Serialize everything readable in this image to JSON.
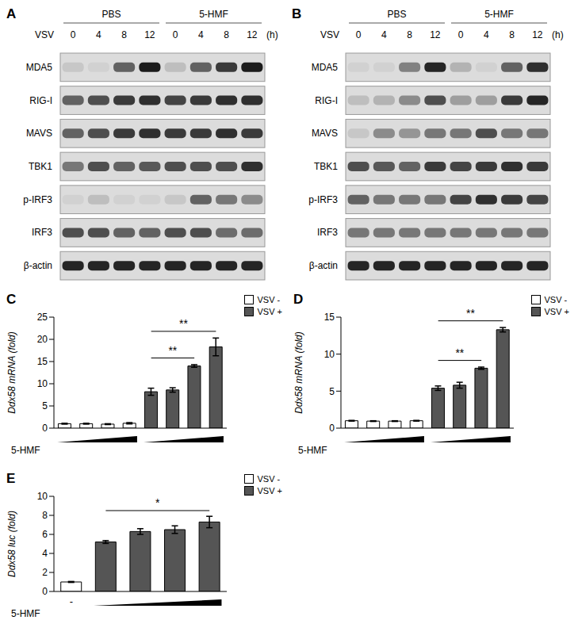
{
  "blots": [
    {
      "panel": "A",
      "groups": [
        "PBS",
        "5-HMF"
      ],
      "treatment": "VSV",
      "times": [
        0,
        4,
        8,
        12
      ],
      "time_unit": "(h)",
      "rows": [
        {
          "label": "MDA5",
          "intensity": [
            0.1,
            0.05,
            0.6,
            0.95,
            0.15,
            0.6,
            0.8,
            0.95
          ]
        },
        {
          "label": "RIG-I",
          "intensity": [
            0.6,
            0.7,
            0.8,
            0.85,
            0.75,
            0.8,
            0.85,
            0.85
          ]
        },
        {
          "label": "MAVS",
          "intensity": [
            0.6,
            0.7,
            0.8,
            0.85,
            0.8,
            0.8,
            0.85,
            0.8
          ]
        },
        {
          "label": "TBK1",
          "intensity": [
            0.5,
            0.7,
            0.6,
            0.65,
            0.7,
            0.7,
            0.7,
            0.85
          ]
        },
        {
          "label": "p-IRF3",
          "intensity": [
            0.05,
            0.15,
            0.05,
            0.05,
            0.1,
            0.6,
            0.5,
            0.4
          ]
        },
        {
          "label": "IRF3",
          "intensity": [
            0.7,
            0.7,
            0.6,
            0.6,
            0.7,
            0.7,
            0.55,
            0.55
          ]
        },
        {
          "label": "β-actin",
          "intensity": [
            0.9,
            0.9,
            0.9,
            0.9,
            0.9,
            0.9,
            0.9,
            0.9
          ]
        }
      ]
    },
    {
      "panel": "B",
      "groups": [
        "PBS",
        "5-HMF"
      ],
      "treatment": "VSV",
      "times": [
        0,
        4,
        8,
        12
      ],
      "time_unit": "(h)",
      "rows": [
        {
          "label": "MDA5",
          "intensity": [
            0.05,
            0.05,
            0.45,
            0.9,
            0.2,
            0.05,
            0.6,
            0.85
          ]
        },
        {
          "label": "RIG-I",
          "intensity": [
            0.15,
            0.2,
            0.4,
            0.7,
            0.3,
            0.3,
            0.8,
            0.9
          ]
        },
        {
          "label": "MAVS",
          "intensity": [
            0.1,
            0.4,
            0.35,
            0.5,
            0.5,
            0.7,
            0.5,
            0.5
          ]
        },
        {
          "label": "TBK1",
          "intensity": [
            0.7,
            0.65,
            0.6,
            0.8,
            0.75,
            0.8,
            0.85,
            0.8
          ]
        },
        {
          "label": "p-IRF3",
          "intensity": [
            0.6,
            0.5,
            0.5,
            0.5,
            0.75,
            0.85,
            0.8,
            0.75
          ]
        },
        {
          "label": "IRF3",
          "intensity": [
            0.5,
            0.5,
            0.5,
            0.5,
            0.5,
            0.5,
            0.5,
            0.5
          ]
        },
        {
          "label": "β-actin",
          "intensity": [
            0.9,
            0.9,
            0.9,
            0.9,
            0.9,
            0.9,
            0.9,
            0.9
          ]
        }
      ]
    }
  ],
  "chart_data": [
    {
      "panel": "C",
      "type": "bar",
      "y_label": "Ddx58 mRNA (fold)",
      "x_label": "5-HMF",
      "categories": [
        null,
        null,
        null,
        null,
        null,
        null,
        null,
        null
      ],
      "series": [
        {
          "name": "VSV -",
          "color": "#ffffff",
          "values": [
            1.0,
            1.0,
            0.9,
            1.1,
            null,
            null,
            null,
            null
          ],
          "errors": [
            0.1,
            0.1,
            0.1,
            0.15,
            null,
            null,
            null,
            null
          ]
        },
        {
          "name": "VSV +",
          "color": "#555555",
          "values": [
            null,
            null,
            null,
            null,
            8.2,
            8.6,
            14.0,
            18.3
          ],
          "errors": [
            null,
            null,
            null,
            null,
            0.8,
            0.5,
            0.3,
            2.0
          ]
        }
      ],
      "ylim": [
        0,
        25
      ],
      "yticks": [
        0,
        5,
        10,
        15,
        20,
        25
      ],
      "annotations": [
        {
          "text": "**",
          "from": 4,
          "to": 6
        },
        {
          "text": "**",
          "from": 4,
          "to": 7
        }
      ]
    },
    {
      "panel": "D",
      "type": "bar",
      "y_label": "Ddx58 mRNA (fold)",
      "x_label": "5-HMF",
      "categories": [
        null,
        null,
        null,
        null,
        null,
        null,
        null,
        null
      ],
      "series": [
        {
          "name": "VSV -",
          "color": "#ffffff",
          "values": [
            1.0,
            0.95,
            0.95,
            1.0,
            null,
            null,
            null,
            null
          ],
          "errors": [
            0.05,
            0.05,
            0.05,
            0.05,
            null,
            null,
            null,
            null
          ]
        },
        {
          "name": "VSV +",
          "color": "#555555",
          "values": [
            null,
            null,
            null,
            null,
            5.4,
            5.8,
            8.1,
            13.3
          ],
          "errors": [
            null,
            null,
            null,
            null,
            0.3,
            0.4,
            0.15,
            0.3
          ]
        }
      ],
      "ylim": [
        0,
        15
      ],
      "yticks": [
        0,
        5,
        10,
        15
      ],
      "annotations": [
        {
          "text": "**",
          "from": 4,
          "to": 6
        },
        {
          "text": "**",
          "from": 4,
          "to": 7
        }
      ]
    },
    {
      "panel": "E",
      "type": "bar",
      "y_label": "Ddx58 luc (fold)",
      "x_label": "5-HMF",
      "categories": [
        "-",
        null,
        null,
        null,
        null
      ],
      "series": [
        {
          "name": "VSV -",
          "color": "#ffffff",
          "values": [
            1.0,
            null,
            null,
            null,
            null
          ],
          "errors": [
            0.05,
            null,
            null,
            null,
            null
          ]
        },
        {
          "name": "VSV +",
          "color": "#555555",
          "values": [
            null,
            5.2,
            6.3,
            6.5,
            7.3
          ],
          "errors": [
            null,
            0.15,
            0.3,
            0.4,
            0.6
          ]
        }
      ],
      "ylim": [
        0,
        10
      ],
      "yticks": [
        0,
        2,
        4,
        6,
        8,
        10
      ],
      "annotations": [
        {
          "text": "*",
          "from": 1,
          "to": 4
        }
      ]
    }
  ]
}
